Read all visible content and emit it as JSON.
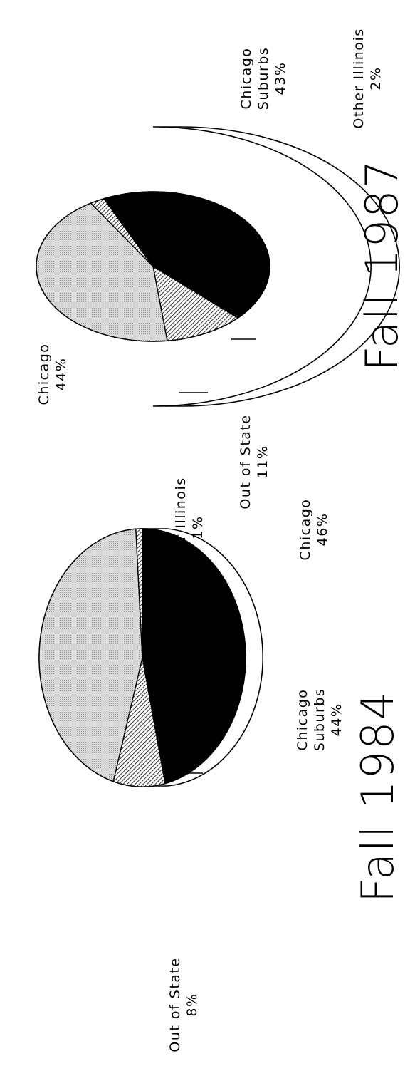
{
  "chart_data": [
    {
      "type": "pie",
      "title": "Fall 1984",
      "slices": [
        {
          "label": "Chicago",
          "value": 46,
          "value_label": "46%",
          "fill": "solid-black"
        },
        {
          "label": "Out of State",
          "value": 8,
          "value_label": "8%",
          "fill": "diagonal-hatch"
        },
        {
          "label": "Chicago Suburbs",
          "value": 44,
          "value_label": "44%",
          "fill": "light-gray-stipple"
        },
        {
          "label": "Other Illinois",
          "value": 1,
          "value_label": "1%",
          "fill": "diagonal-hatch"
        }
      ],
      "style": "3d-pie"
    },
    {
      "type": "pie",
      "title": "Fall 1987",
      "slices": [
        {
          "label": "Chicago",
          "value": 44,
          "value_label": "44%",
          "fill": "solid-black"
        },
        {
          "label": "Out of State",
          "value": 11,
          "value_label": "11%",
          "fill": "diagonal-hatch"
        },
        {
          "label": "Chicago Suburbs",
          "value": 43,
          "value_label": "43%",
          "fill": "light-gray-stipple"
        },
        {
          "label": "Other Illinois",
          "value": 2,
          "value_label": "2%",
          "fill": "diagonal-hatch"
        }
      ],
      "style": "3d-pie"
    }
  ],
  "colors": {
    "ink": "#000000",
    "paper": "#ffffff",
    "stipple": "#cfcfcf"
  }
}
